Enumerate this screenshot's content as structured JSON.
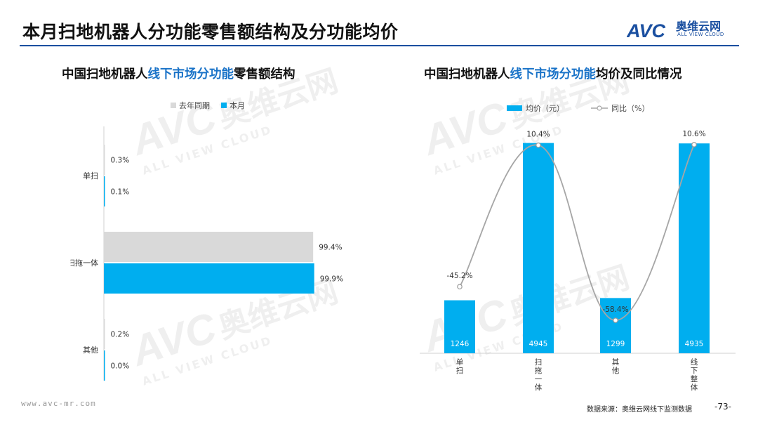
{
  "header": {
    "title": "本月扫地机器人分功能零售额结构及分功能均价",
    "logo": {
      "mark": "AVC",
      "name_cn": "奥维云网",
      "name_en": "ALL VIEW CLOUD",
      "color": "#1a4fa0"
    }
  },
  "colors": {
    "current": "#00aeef",
    "previous": "#d9d9d9",
    "yoy_line": "#a6a6a6",
    "title_rule": "#1a4fa0",
    "highlight": "#1a73c8"
  },
  "chart_data": [
    {
      "type": "bar",
      "orientation": "horizontal",
      "title_parts": [
        "中国扫地机器人",
        "线下市场分功能",
        "零售额结构"
      ],
      "categories": [
        "单扫",
        "扫拖一体",
        "其他"
      ],
      "series": [
        {
          "name": "去年同期",
          "values": [
            0.3,
            99.4,
            0.2
          ],
          "labels": [
            "0.3%",
            "99.4%",
            "0.2%"
          ]
        },
        {
          "name": "本月",
          "values": [
            0.1,
            99.9,
            0.0
          ],
          "labels": [
            "0.1%",
            "99.9%",
            "0.0%"
          ]
        }
      ],
      "unit": "%",
      "xlim": [
        0,
        100
      ],
      "grid": false,
      "legend": "top"
    },
    {
      "type": "bar+line",
      "title_parts": [
        "中国扫地机器人",
        "线下市场分功能",
        "均价及同比情况"
      ],
      "categories": [
        "单扫",
        "扫拖一体",
        "其他",
        "线下整体"
      ],
      "category_display": [
        "单\n扫",
        "扫\n拖\n一\n体",
        "其\n他",
        "线\n下\n整\n体"
      ],
      "bar_series": {
        "name": "均价（元）",
        "values": [
          1246,
          4945,
          1299,
          4935
        ],
        "labels": [
          "1246",
          "4945",
          "1299",
          "4935"
        ]
      },
      "line_series": {
        "name": "同比（%）",
        "values": [
          -45.2,
          10.4,
          -58.4,
          10.6
        ],
        "labels": [
          "-45.2%",
          "10.4%",
          "-58.4%",
          "10.6%"
        ]
      },
      "bar_ylim": [
        0,
        5500
      ],
      "line_ylim": [
        -65,
        15
      ],
      "grid": false,
      "legend": "top"
    }
  ],
  "watermark": {
    "mark": "AVC",
    "name_cn": "奥维云网",
    "name_en": "ALL VIEW CLOUD"
  },
  "footer": {
    "url": "www.avc-mr.com",
    "source": "数据来源：奥维云网线下监测数据",
    "page": "-73-"
  }
}
